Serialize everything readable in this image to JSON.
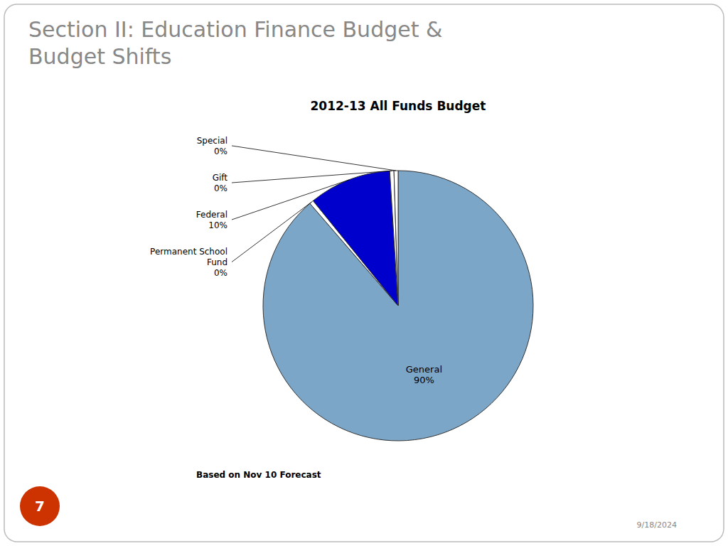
{
  "slide_title": "Section II:  Education Finance Budget &\nBudget Shifts",
  "chart_data": {
    "type": "pie",
    "title": "2012-13 All Funds Budget",
    "categories": [
      "General",
      "Permanent School\nFund",
      "Federal",
      "Gift",
      "Special"
    ],
    "values": [
      90,
      0.5,
      10,
      0.5,
      0.5
    ],
    "value_labels": [
      "90%",
      "0%",
      "10%",
      "0%",
      "0%"
    ],
    "colors": [
      "#7ca6c8",
      "#ffffff",
      "#0000cc",
      "#ffffff",
      "#ffffff"
    ],
    "data_labels": true
  },
  "footnote": "Based on Nov 10 Forecast",
  "date_text": "9/18/2024",
  "slide_number": "7"
}
